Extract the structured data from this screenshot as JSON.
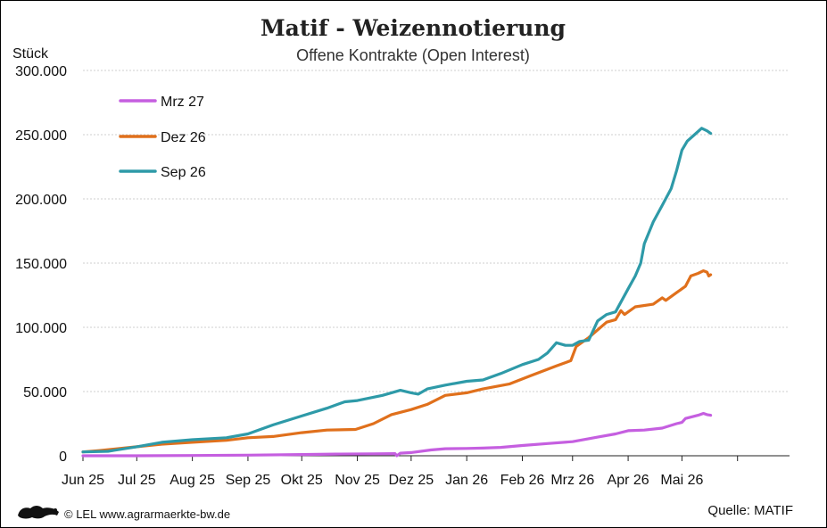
{
  "colors": {
    "mrz27": "#c55fe0",
    "dez26": "#e0701c",
    "sep26": "#2e9aa8"
  },
  "footer": {
    "logo_icon": "lion-coat-of-arms-icon",
    "copyright": "© LEL www.agrarmaerkte-bw.de",
    "source": "Quelle:  MATIF"
  },
  "chart_data": {
    "type": "line",
    "title": "Matif - Weizennotierung",
    "subtitle": "Offene Kontrakte (Open Interest)",
    "ylabel": "Stück",
    "xlabel": "",
    "ylim": [
      0,
      300000
    ],
    "y_ticks": [
      0,
      50000,
      100000,
      150000,
      200000,
      250000,
      300000
    ],
    "y_tick_labels": [
      "0",
      "50.000",
      "100.000",
      "150.000",
      "200.000",
      "250.000",
      "300.000"
    ],
    "x_range": [
      "2025-06-01",
      "2026-06-30"
    ],
    "x_ticks": [
      "2025-06-01",
      "2025-07-01",
      "2025-08-01",
      "2025-09-01",
      "2025-10-01",
      "2025-11-01",
      "2025-12-01",
      "2026-01-01",
      "2026-02-01",
      "2026-03-01",
      "2026-04-01",
      "2026-05-01",
      "2026-06-01"
    ],
    "x_tick_labels": [
      "Jun 25",
      "Jul 25",
      "Aug 25",
      "Sep 25",
      "Okt 25",
      "Nov 25",
      "Dez 25",
      "Jan 26",
      "Feb 26",
      "Mrz 26",
      "Apr 26",
      "Mai 26",
      ""
    ],
    "grid": "horizontal",
    "legend_position": "top-left",
    "series": [
      {
        "name": "Mrz 27",
        "color_key": "mrz27",
        "points": [
          [
            "2025-06-01",
            0
          ],
          [
            "2025-07-01",
            0
          ],
          [
            "2025-08-01",
            200
          ],
          [
            "2025-09-01",
            500
          ],
          [
            "2025-10-01",
            1000
          ],
          [
            "2025-10-20",
            1300
          ],
          [
            "2025-11-10",
            1500
          ],
          [
            "2025-11-22",
            1700
          ],
          [
            "2025-11-23",
            0
          ],
          [
            "2025-11-25",
            2000
          ],
          [
            "2025-12-01",
            2500
          ],
          [
            "2025-12-12",
            4500
          ],
          [
            "2025-12-20",
            5500
          ],
          [
            "2026-01-01",
            5700
          ],
          [
            "2026-01-10",
            6000
          ],
          [
            "2026-01-20",
            6500
          ],
          [
            "2026-02-01",
            8000
          ],
          [
            "2026-02-15",
            9500
          ],
          [
            "2026-03-01",
            11000
          ],
          [
            "2026-03-15",
            14500
          ],
          [
            "2026-03-25",
            17000
          ],
          [
            "2026-04-01",
            19500
          ],
          [
            "2026-04-10",
            20000
          ],
          [
            "2026-04-20",
            21500
          ],
          [
            "2026-04-28",
            25000
          ],
          [
            "2026-05-01",
            26000
          ],
          [
            "2026-05-03",
            29000
          ],
          [
            "2026-05-10",
            31500
          ],
          [
            "2026-05-13",
            33000
          ],
          [
            "2026-05-15",
            32000
          ],
          [
            "2026-05-17",
            31500
          ]
        ]
      },
      {
        "name": "Dez 26",
        "color_key": "dez26",
        "points": [
          [
            "2025-06-01",
            3000
          ],
          [
            "2025-06-10",
            4000
          ],
          [
            "2025-07-01",
            7000
          ],
          [
            "2025-07-15",
            9000
          ],
          [
            "2025-08-01",
            10500
          ],
          [
            "2025-08-20",
            12000
          ],
          [
            "2025-09-01",
            14000
          ],
          [
            "2025-09-15",
            15000
          ],
          [
            "2025-10-01",
            18000
          ],
          [
            "2025-10-15",
            20000
          ],
          [
            "2025-10-31",
            20500
          ],
          [
            "2025-11-10",
            25000
          ],
          [
            "2025-11-20",
            32000
          ],
          [
            "2025-12-01",
            36000
          ],
          [
            "2025-12-10",
            40000
          ],
          [
            "2025-12-20",
            47000
          ],
          [
            "2026-01-01",
            49000
          ],
          [
            "2026-01-10",
            52000
          ],
          [
            "2026-01-25",
            56000
          ],
          [
            "2026-02-05",
            62000
          ],
          [
            "2026-02-20",
            70000
          ],
          [
            "2026-02-28",
            74000
          ],
          [
            "2026-03-03",
            85000
          ],
          [
            "2026-03-10",
            92000
          ],
          [
            "2026-03-20",
            104000
          ],
          [
            "2026-03-25",
            106000
          ],
          [
            "2026-03-28",
            113000
          ],
          [
            "2026-03-30",
            110000
          ],
          [
            "2026-04-05",
            116000
          ],
          [
            "2026-04-15",
            118000
          ],
          [
            "2026-04-20",
            123000
          ],
          [
            "2026-04-22",
            121000
          ],
          [
            "2026-04-28",
            127000
          ],
          [
            "2026-05-03",
            132000
          ],
          [
            "2026-05-06",
            140000
          ],
          [
            "2026-05-10",
            142000
          ],
          [
            "2026-05-13",
            144000
          ],
          [
            "2026-05-15",
            143000
          ],
          [
            "2026-05-16",
            140000
          ],
          [
            "2026-05-17",
            141000
          ]
        ]
      },
      {
        "name": "Sep 26",
        "color_key": "sep26",
        "points": [
          [
            "2025-06-01",
            3000
          ],
          [
            "2025-06-15",
            3500
          ],
          [
            "2025-07-01",
            7000
          ],
          [
            "2025-07-15",
            10500
          ],
          [
            "2025-08-01",
            12500
          ],
          [
            "2025-08-20",
            14000
          ],
          [
            "2025-09-01",
            17000
          ],
          [
            "2025-09-15",
            24000
          ],
          [
            "2025-10-01",
            31000
          ],
          [
            "2025-10-15",
            37000
          ],
          [
            "2025-10-25",
            42000
          ],
          [
            "2025-11-01",
            43000
          ],
          [
            "2025-11-15",
            47000
          ],
          [
            "2025-11-25",
            51000
          ],
          [
            "2025-12-01",
            49000
          ],
          [
            "2025-12-05",
            48000
          ],
          [
            "2025-12-10",
            52000
          ],
          [
            "2025-12-20",
            55000
          ],
          [
            "2026-01-01",
            58000
          ],
          [
            "2026-01-10",
            59000
          ],
          [
            "2026-01-20",
            64000
          ],
          [
            "2026-02-01",
            71000
          ],
          [
            "2026-02-10",
            75000
          ],
          [
            "2026-02-15",
            80000
          ],
          [
            "2026-02-20",
            88000
          ],
          [
            "2026-02-25",
            86000
          ],
          [
            "2026-03-01",
            86000
          ],
          [
            "2026-03-05",
            89000
          ],
          [
            "2026-03-10",
            90000
          ],
          [
            "2026-03-15",
            105000
          ],
          [
            "2026-03-20",
            110000
          ],
          [
            "2026-03-25",
            112000
          ],
          [
            "2026-04-01",
            130000
          ],
          [
            "2026-04-05",
            140000
          ],
          [
            "2026-04-08",
            150000
          ],
          [
            "2026-04-10",
            165000
          ],
          [
            "2026-04-15",
            182000
          ],
          [
            "2026-04-20",
            195000
          ],
          [
            "2026-04-25",
            208000
          ],
          [
            "2026-04-28",
            222000
          ],
          [
            "2026-05-01",
            238000
          ],
          [
            "2026-05-04",
            245000
          ],
          [
            "2026-05-08",
            250000
          ],
          [
            "2026-05-12",
            255000
          ],
          [
            "2026-05-15",
            253000
          ],
          [
            "2026-05-17",
            251000
          ]
        ]
      }
    ]
  }
}
